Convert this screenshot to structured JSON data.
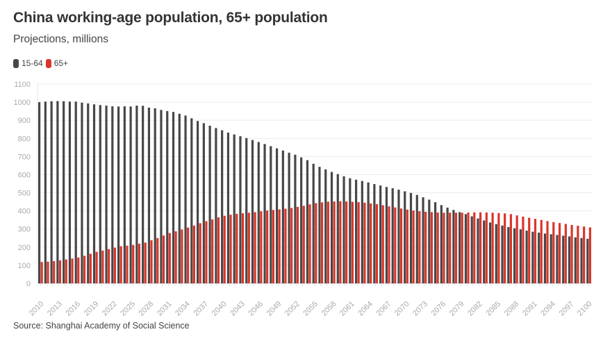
{
  "title": "China working-age population, 65+ population",
  "subtitle": "Projections, millions",
  "source": "Source: Shanghai Academy of Social Science",
  "legend": [
    {
      "label": "15-64",
      "color": "#474747"
    },
    {
      "label": "65+",
      "color": "#d9362c"
    }
  ],
  "chart_data": {
    "type": "bar",
    "title": "China working-age population, 65+ population",
    "subtitle": "Projections, millions",
    "xlabel": "",
    "ylabel": "",
    "ylim": [
      0,
      1100
    ],
    "yticks": [
      0,
      100,
      200,
      300,
      400,
      500,
      600,
      700,
      800,
      900,
      1000,
      1100
    ],
    "grid": true,
    "legend_position": "top-left",
    "x_start": 2010,
    "x_end": 2100,
    "x_tick_step": 3,
    "categories": [
      2010,
      2011,
      2012,
      2013,
      2014,
      2015,
      2016,
      2017,
      2018,
      2019,
      2020,
      2021,
      2022,
      2023,
      2024,
      2025,
      2026,
      2027,
      2028,
      2029,
      2030,
      2031,
      2032,
      2033,
      2034,
      2035,
      2036,
      2037,
      2038,
      2039,
      2040,
      2041,
      2042,
      2043,
      2044,
      2045,
      2046,
      2047,
      2048,
      2049,
      2050,
      2051,
      2052,
      2053,
      2054,
      2055,
      2056,
      2057,
      2058,
      2059,
      2060,
      2061,
      2062,
      2063,
      2064,
      2065,
      2066,
      2067,
      2068,
      2069,
      2070,
      2071,
      2072,
      2073,
      2074,
      2075,
      2076,
      2077,
      2078,
      2079,
      2080,
      2081,
      2082,
      2083,
      2084,
      2085,
      2086,
      2087,
      2088,
      2089,
      2090,
      2091,
      2092,
      2093,
      2094,
      2095,
      2096,
      2097,
      2098,
      2099,
      2100
    ],
    "series": [
      {
        "name": "15-64",
        "color": "#474747",
        "values": [
          1000,
          1003,
          1005,
          1006,
          1005,
          1003,
          1003,
          997,
          993,
          988,
          984,
          981,
          977,
          976,
          977,
          976,
          981,
          980,
          970,
          966,
          957,
          951,
          946,
          936,
          926,
          911,
          896,
          884,
          870,
          857,
          845,
          832,
          822,
          812,
          802,
          791,
          780,
          769,
          757,
          745,
          733,
          721,
          710,
          695,
          680,
          660,
          643,
          629,
          615,
          603,
          591,
          580,
          572,
          565,
          557,
          548,
          540,
          532,
          525,
          517,
          508,
          499,
          488,
          475,
          462,
          448,
          432,
          418,
          405,
          393,
          382,
          370,
          358,
          347,
          336,
          327,
          319,
          311,
          304,
          298,
          291,
          285,
          280,
          275,
          271,
          267,
          263,
          259,
          254,
          250,
          246
        ],
        "stroke_note": "values estimated from gridlines"
      },
      {
        "name": "65+",
        "color": "#d9362c",
        "values": [
          118,
          120,
          123,
          127,
          132,
          137,
          143,
          152,
          163,
          174,
          181,
          189,
          197,
          205,
          208,
          212,
          219,
          225,
          238,
          250,
          264,
          278,
          287,
          297,
          308,
          319,
          332,
          343,
          353,
          364,
          373,
          379,
          384,
          387,
          390,
          393,
          398,
          402,
          405,
          408,
          412,
          416,
          422,
          428,
          436,
          443,
          447,
          451,
          452,
          453,
          452,
          450,
          448,
          445,
          441,
          437,
          431,
          425,
          419,
          413,
          407,
          402,
          398,
          395,
          393,
          391,
          390,
          390,
          390,
          390,
          391,
          392,
          392,
          391,
          390,
          388,
          386,
          382,
          375,
          368,
          362,
          356,
          350,
          344,
          338,
          333,
          328,
          322,
          318,
          314,
          309
        ]
      }
    ]
  }
}
